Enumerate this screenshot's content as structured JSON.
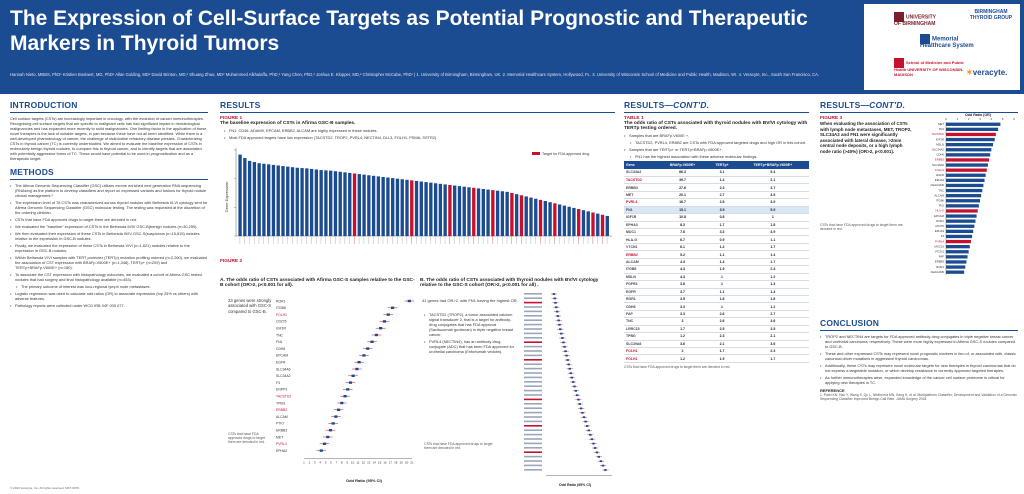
{
  "header": {
    "title": "The Expression of Cell-Surface Targets as Potential Prognostic and Therapeutic Markers in Thyroid Tumors",
    "authors": "Hannah Nieto, MBBS, PhD¹ Kristien Boelaert, MD, PhD¹ Allan Golding, MD² David Brinton, MD,² Shuang Zhao, MD² Muhammed Alkhalaffa, PhD,² Yang Chen, PhD,² Joshua E. Klopper, MD,² Christopher McCabe, PhD¹ | 1. University of Birmingham, Birmingham, UK. 2. Memorial Healthcare System, Hollywood, FL. 3. University of Wisconsin School of Medicine and Public Health, Madison, WI. 4. Veracyte, Inc., South San Francisco, CA.",
    "logos": {
      "uob": "UNIVERSITY OF BIRMINGHAM",
      "btg": "BIRMINGHAM THYROID GROUP",
      "memorial": "Memorial Healthcare System",
      "wisc": "School of Medicine and Public Health UNIVERSITY OF WISCONSIN-MADISON",
      "veracyte": "veracyte."
    }
  },
  "intro": {
    "title": "INTRODUCTION",
    "text": "Cell surface targets (CSTs) are increasingly important in oncology, with the evolution of cancer immunotherapies. Recognising cell surface targets that are specific to malignant cells has had significant impact in hematological malignancies and has expanded more recently to solid malignancies. One limiting factor in the application of these novel therapies is the lack of suitable targets, in part because these have not all been identified. While there is a well-developed pharmacology of cancer, the challenge of radioiodine refractory disease persists. Characterizing CSTs in thyroid cancer (TC) is currently understudied. We aimed to evaluate the baseline expression of CSTs in molecularly benign thyroid nodules, to compare this to thyroid cancer, and to identify targets that are associated with potentially aggressive forms of TC. These would have potential to be used in prognostication and as a therapeutic target."
  },
  "methods": {
    "title": "METHODS",
    "items": [
      "The Afirma Genomic Sequencing Classifier (GSC) utilizes exome enriched next generation RNA sequencing (RNAseq) as the platform to develop classifiers and report on expressed variants and fusions for thyroid nodule clinical management.¹",
      "The expression level of 78 CSTs was characterized across thyroid nodules with Bethesda III-VI cytology sent for Afirma Genomic Sequencing Classifier (GSC) molecular testing. The testing was requested at the discretion of the ordering clinician.",
      "CSTs that have FDA approved drugs to target them are denoted in red.",
      "We evaluated the \"baseline\" expression of CSTs in the Bethesda III/IV GSC-B(benign nodules (n=30,259).",
      "We then evaluated their expression of these CSTs in Bethesda III/IV GSC-S(suspicious (n=15,815) nodules relative to the expression in GSC-B nodules.",
      "Finally, we evaluated the expression of these CSTs in Bethesda V/VI (n=1,621) nodules relative to the expression in GSC-B nodules.",
      "Within Bethesda V/VI samples with TERT promoter (TERTp) mutation profiling ordered (n=2,260), we evaluated the association of CST expression with BRAFp.V600E+ (n=1,348), TERTp+ (n=209) and TERTp+BRAFp.V600E+ (n=180).",
      "To associate the CST expression with histopathology outcomes, we evaluated a cohort of Afirma GSC tested nodules that had surgery and final histopathology available (n=453).",
      "Logistic regression was used to calculate odd ratios (OR) to associate expression (top 25% vs others) with adverse features.",
      "Pathology reports were collected under WCG IRB 04F 005 077."
    ],
    "sub_item": "The primary outcome of interest was loco-regional lymph node metastases."
  },
  "results": {
    "title": "RESULTS",
    "fig1": {
      "label": "FIGURE 1",
      "title": "The baseline expression of CSTs in Afirma GSC-B samples.",
      "bullets": [
        "FN1, CD46, ADAM9, EPCAM, ERBB2, ALCAM are highly expressed in these nodules.",
        "Most FDA approved targets have low expression (TACSTD2, TROP2, PVRL4, NECTIN4, DLL3, FOLH1, PSMA, SSTR2)"
      ],
      "ylabel": "Gene Expression",
      "legend": "Target for FDA approved drug"
    },
    "fig2": {
      "label": "FIGURE 2",
      "a_title": "A.  The odds ratio of CSTs associated with Afirma GSC-S samples relative to the GSC-B cohort (OR>2, p<0.001 for all).",
      "a_text": "23 genes were strongly associated with GSC-S compared to GSC-B.",
      "a_note": "CSTs that have FDA approved drugs to target them are denoted in red.",
      "b_title": "B.  The odds ratio of CSTs associated with thyroid nodules with BV/VI cytology relative to the GSC-S cohort (OR>2, p<0.001 for all) .",
      "b_text": "41 genes had OR>2, with FN1 having the highest OR.",
      "b_bullets": [
        "TACSTD2 (TROP2), a tumor associated calcium signal transducer 2, that is a target for antibody-drug conjugates that has FDA approval (Sacituzumab govitecan) in triple negative breast cancer.",
        "PVRL4 (NECTIN4), has an antibody-drug conjugate (ADC) that has been FDA approved for urothelial carcinoma (Enfortumab vedotin)."
      ],
      "b_note": "CSTs that have FDA approved drugs to target them are denoted in red.",
      "xlabel": "Odd Ratio (95% CI)"
    }
  },
  "results2": {
    "title": "RESULTS",
    "cont": "—CONT'D.",
    "table": {
      "label": "TABLE 1",
      "title": "The odds ratio of CSTs associated with thyroid nodules with BV/VI cytology with TERTp testing ordered.",
      "bullets": [
        "Samples that are BRAFp.V600E +.",
        "Samples that are TERTp+ or TERTp+BRAFp.V600E+."
      ],
      "sub1": "TACSTD2, PVRL4, ERBB2 are CSTs with FDA approved targeted drugs and high OR in this cohort.",
      "sub2": "FN1 has the highest association with these adverse molecular findings.",
      "headers": [
        "Gene",
        "BRAFp.V600E+",
        "TERTp+",
        "TERTp+BRAFp.V600E+"
      ],
      "rows": [
        [
          "SLC34A2",
          "66.3",
          "3.1",
          "5.4"
        ],
        [
          "TACSTD2",
          "39.7",
          "1.4",
          "2.1"
        ],
        [
          "ERBB3",
          "27.6",
          "2.3",
          "3.7"
        ],
        [
          "MET",
          "20.1",
          "2.7",
          "4.5"
        ],
        [
          "PVRL4",
          "16.7",
          "2.5",
          "3.9"
        ],
        [
          "FN1",
          "15.1",
          "3.9",
          "5.9"
        ],
        [
          "IGF1R",
          "10.8",
          "0.8",
          "1"
        ],
        [
          "EPHA3",
          "8.3",
          "1.7",
          "1.8"
        ],
        [
          "MUC1",
          "7.6",
          "3.3",
          "4.9"
        ],
        [
          "HLA-G",
          "6.7",
          "0.9",
          "1.1"
        ],
        [
          "VTCN1",
          "6.1",
          "1.2",
          "1.7"
        ],
        [
          "ERBB2",
          "5.2",
          "1.1",
          "1.4"
        ],
        [
          "ALCAM",
          "4.3",
          "1.4",
          "1.7"
        ],
        [
          "ITGB6",
          "4.3",
          "1.9",
          "2.4"
        ],
        [
          "MSLN",
          "4.3",
          "1",
          "1.2"
        ],
        [
          "FGFR3",
          "3.8",
          "1",
          "1.3"
        ],
        [
          "EGFR",
          "3.7",
          "1.1",
          "1.4"
        ],
        [
          "ROR1",
          "3.5",
          "1.6",
          "1.8"
        ],
        [
          "CDH6",
          "3.3",
          "1",
          "1.2"
        ],
        [
          "FAP",
          "3.3",
          "2.6",
          "2.7"
        ],
        [
          "TNC",
          "3",
          "2.6",
          "3.6"
        ],
        [
          "LRRC15",
          "1.7",
          "2.5",
          "3.5"
        ],
        [
          "TPBG",
          "1.2",
          "2.3",
          "2.1"
        ],
        [
          "SLC39A6",
          "3.6",
          "2.1",
          "3.6"
        ],
        [
          "FOLH1",
          "2",
          "1.7",
          "2.3"
        ],
        [
          "FOLH1",
          "1.2",
          "1.9",
          "1.7"
        ]
      ],
      "note": "CSTs that have FDA approved drugs to target them are denoted in red."
    }
  },
  "results3": {
    "title": "RESULTS",
    "cont": "—CONT'D.",
    "fig3": {
      "label": "FIGURE 3",
      "title": "When evaluating the association of CSTs with lymph node metastases, MET, TROP2, SLC34A2 and FN1 were significantly associated with lateral disease, >2mm central node deposits, or a high lymph node ratio (>40%) (OR>2, p<0.001).",
      "axis_title": "Odd Ratio (OR)",
      "note": "CSTs that have FDA approved drugs to target them are denoted in red."
    }
  },
  "conclusion": {
    "title": "CONCLUSION",
    "items": [
      "TROP2 and NECTIN4 are targets for FDA approved antibody-drug conjugates in triple negative breast cancer and urothelial carcinoma, respectively. These were more highly expressed in Afirma GSC-S nodules compared to GSC-B.",
      "These and other expressed CSTs may represent novel prognostic markers in lieu of, or associated with, classic canonical driver mutations in aggressive thyroid carcinomas.",
      "Additionally, these CSTs may represent novel molecular targets for new therapies in thyroid carcinomas that do not express a targetable mutation, or which develop resistance to currently approved targeted therapies.",
      "As further immunotherapies arise, expanded knowledge of the cancer cell surface proteome is critical for applying new therapies in TC."
    ],
    "ref_title": "REFERENCE",
    "ref": "1. Patel KN, Hao Y, Wang S, Qu L, Nikiforova MN, Kang H, et al. Multiplatform Classifier; Development and Validation of a Genomic Sequencing Classifier Improved Benign Call Rate. JAMA Surgery 2018.",
    "copyright": "© 2023 Veracyte, Inc. All rights reserved. MKT-0079"
  },
  "chart_data": [
    {
      "type": "bar",
      "name": "figure-1",
      "ylabel": "Gene Expression",
      "legend": [
        "Target for FDA approved drug"
      ],
      "n_bars": 78,
      "values": [
        14.2,
        13.6,
        13.1,
        12.9,
        12.7,
        12.6,
        12.5,
        12.4,
        12.3,
        12.2,
        12.1,
        12.0,
        11.9,
        11.85,
        11.8,
        11.7,
        11.6,
        11.5,
        11.45,
        11.4,
        11.3,
        11.2,
        11.1,
        11.0,
        10.9,
        10.8,
        10.7,
        10.6,
        10.5,
        10.4,
        10.3,
        10.2,
        10.1,
        10.0,
        9.9,
        9.8,
        9.7,
        9.6,
        9.5,
        9.4,
        9.3,
        9.2,
        9.1,
        9.0,
        8.9,
        8.8,
        8.7,
        8.6,
        8.5,
        8.4,
        8.3,
        8.2,
        8.1,
        8.0,
        7.9,
        7.8,
        7.7,
        7.5,
        7.3,
        7.1,
        6.9,
        6.7,
        6.5,
        6.3,
        6.1,
        5.9,
        5.7,
        5.5,
        5.3,
        5.1,
        4.9,
        4.7,
        4.5,
        4.3,
        4.1,
        3.9,
        3.7,
        3.5
      ],
      "red_indices": [
        24,
        36,
        44,
        49,
        53,
        57,
        59,
        63,
        66,
        71,
        74,
        76
      ],
      "ylim": [
        0,
        15
      ]
    },
    {
      "type": "scatter",
      "name": "figure-2a",
      "xlabel": "Odd Ratio (95% CI)",
      "categories": [
        "ROR1",
        "ITGB6",
        "FOLH1",
        "CD276",
        "IGF1R",
        "TNC",
        "FN1",
        "CDH6",
        "EPCAM",
        "EGFR",
        "SLC34A6",
        "SLC34A2",
        "F3",
        "ENPP3",
        "TACSTD2",
        "TPBG",
        "ERBB2",
        "ALCAM",
        "PTK7",
        "ERBB3",
        "MET",
        "PVRL4",
        "EPHA2"
      ],
      "red": [
        2,
        14,
        16,
        21
      ],
      "values": [
        20.5,
        17.4,
        16.6,
        15.9,
        15.2,
        14.4,
        13.6,
        12.8,
        12.1,
        11.2,
        10.8,
        10.1,
        9.6,
        9.1,
        8.6,
        8.0,
        7.4,
        6.9,
        6.4,
        5.9,
        5.4,
        4.8,
        4.2
      ],
      "xlim": [
        1,
        21
      ],
      "xticks": [
        1,
        2,
        3,
        4,
        5,
        6,
        7,
        8,
        9,
        10,
        11,
        12,
        13,
        14,
        15,
        16,
        17,
        18,
        19,
        20,
        21
      ]
    },
    {
      "type": "scatter",
      "name": "figure-2b",
      "xlabel": "Odd Ratio (95% CI)",
      "n_points": 41,
      "red_indices": [
        2,
        11,
        15,
        24,
        30,
        36
      ],
      "values": [
        3.0,
        3.3,
        3.6,
        3.9,
        4.2,
        4.5,
        4.8,
        5.1,
        5.4,
        5.8,
        6.2,
        6.6,
        7.0,
        7.4,
        7.8,
        8.2,
        8.6,
        9.0,
        9.4,
        9.8,
        10.3,
        10.8,
        11.3,
        11.8,
        12.3,
        12.8,
        13.3,
        13.8,
        14.4,
        15.0,
        15.6,
        16.2,
        16.8,
        17.4,
        18.0,
        18.6,
        19.3,
        20.0,
        20.8,
        21.6,
        22.5
      ],
      "xlim": [
        0,
        25
      ]
    },
    {
      "type": "bar",
      "name": "figure-3",
      "title": "Odd Ratio (OR)",
      "categories": [
        "MET",
        "FN1",
        "TACSTD2",
        "IGF1R",
        "MSLN",
        "SLC34A2",
        "CDH6",
        "ERBB2",
        "SLC39A6",
        "FOLH1",
        "EGFR",
        "EPHA2",
        "CEACAM6",
        "TNC",
        "ALCAM",
        "ITGB6",
        "FN1",
        "HLA-G",
        "EPCAM",
        "ROR1",
        "CD276",
        "EPHA3",
        "F3",
        "PVRL4",
        "MUC16",
        "VTCN1",
        "FAP",
        "ERBB3",
        "ROR1",
        "CEACAM5"
      ],
      "red": [
        2,
        7,
        9,
        17,
        23
      ],
      "values": [
        4.8,
        4.6,
        4.4,
        4.3,
        4.15,
        4.0,
        3.9,
        3.8,
        3.7,
        3.6,
        3.5,
        3.4,
        3.3,
        3.2,
        3.1,
        3.0,
        2.9,
        2.8,
        2.7,
        2.6,
        2.5,
        2.4,
        2.3,
        2.2,
        2.1,
        2.0,
        1.9,
        1.8,
        1.7,
        1.6
      ],
      "xlim": [
        0,
        6
      ],
      "xticks": [
        0,
        1,
        2,
        3,
        4,
        5,
        6
      ]
    }
  ]
}
